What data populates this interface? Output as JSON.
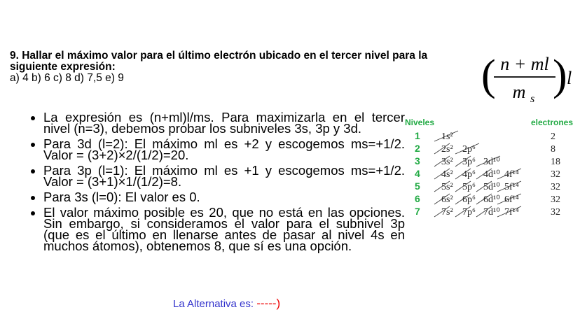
{
  "question": {
    "title": "9. Hallar el máximo valor para el último electrón ubicado en el tercer nivel para la siguiente expresión:",
    "options": "a) 4 b) 6 c) 8 d) 7,5 e) 9"
  },
  "formula": {
    "numerator": "n + ml",
    "denominator": "m",
    "denominator_sub": "s",
    "suffix": "l"
  },
  "bullets": [
    "La expresión es (n+ml)l/ms. Para maximizarla en el tercer nivel (n=3), debemos probar los subniveles 3s, 3p y 3d.",
    "Para 3d (l=2): El máximo ml es +2 y escogemos ms=+1/2. Valor = (3+2)×2/(1/2)=20.",
    "Para 3p (l=1): El máximo ml es +1 y escogemos ms=+1/2. Valor = (3+1)×1/(1/2)=8.",
    "Para 3s (l=0): El valor es 0.",
    "El valor máximo posible es 20, que no está en las opciones. Sin embargo, si consideramos el valor para el subnivel 3p (que es el último en llenarse antes de pasar al nivel 4s en muchos átomos), obtenemos 8, que sí es una opción."
  ],
  "answer": {
    "label": "La Alternativa es:",
    "blank": "-----)"
  },
  "diagram": {
    "header_left": "Niveles",
    "header_right": "electrones",
    "accent": "#22aa44",
    "rows": [
      {
        "level": "1",
        "orbitals": [
          "1s²"
        ],
        "electrons": "2"
      },
      {
        "level": "2",
        "orbitals": [
          "2s²",
          "2p⁶"
        ],
        "electrons": "8"
      },
      {
        "level": "3",
        "orbitals": [
          "3s²",
          "3p⁶",
          "3d¹⁰"
        ],
        "electrons": "18"
      },
      {
        "level": "4",
        "orbitals": [
          "4s²",
          "4p⁶",
          "4d¹⁰",
          "4f¹⁴"
        ],
        "electrons": "32"
      },
      {
        "level": "5",
        "orbitals": [
          "5s²",
          "5p⁶",
          "5d¹⁰",
          "5f¹⁴"
        ],
        "electrons": "32"
      },
      {
        "level": "6",
        "orbitals": [
          "6s²",
          "6p⁶",
          "6d¹⁰",
          "6f¹⁴"
        ],
        "electrons": "32"
      },
      {
        "level": "7",
        "orbitals": [
          "7s²",
          "7p⁶",
          "7d¹⁰",
          "7f¹⁴"
        ],
        "electrons": "32"
      }
    ]
  }
}
